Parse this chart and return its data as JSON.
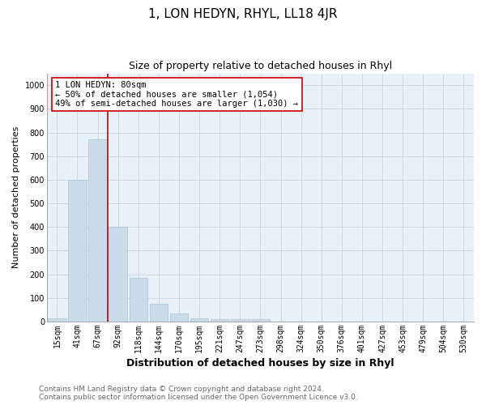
{
  "title": "1, LON HEDYN, RHYL, LL18 4JR",
  "subtitle": "Size of property relative to detached houses in Rhyl",
  "xlabel": "Distribution of detached houses by size in Rhyl",
  "ylabel": "Number of detached properties",
  "categories": [
    "15sqm",
    "41sqm",
    "67sqm",
    "92sqm",
    "118sqm",
    "144sqm",
    "170sqm",
    "195sqm",
    "221sqm",
    "247sqm",
    "273sqm",
    "298sqm",
    "324sqm",
    "350sqm",
    "376sqm",
    "401sqm",
    "427sqm",
    "453sqm",
    "479sqm",
    "504sqm",
    "530sqm"
  ],
  "values": [
    15,
    600,
    770,
    400,
    185,
    75,
    35,
    15,
    10,
    10,
    10,
    0,
    0,
    0,
    0,
    0,
    0,
    0,
    0,
    0,
    0
  ],
  "bar_color": "#c9dcea",
  "bar_edge_color": "#aac4d8",
  "vline_x": 2.5,
  "vline_color": "#cc0000",
  "annotation_text": "1 LON HEDYN: 80sqm\n← 50% of detached houses are smaller (1,054)\n49% of semi-detached houses are larger (1,030) →",
  "annotation_box_color": "#ffffff",
  "annotation_box_edge_color": "#cc0000",
  "ylim": [
    0,
    1050
  ],
  "yticks": [
    0,
    100,
    200,
    300,
    400,
    500,
    600,
    700,
    800,
    900,
    1000
  ],
  "grid_color": "#c8d4e0",
  "background_color": "#e8f0f8",
  "footer": "Contains HM Land Registry data © Crown copyright and database right 2024.\nContains public sector information licensed under the Open Government Licence v3.0.",
  "title_fontsize": 11,
  "subtitle_fontsize": 9,
  "xlabel_fontsize": 9,
  "ylabel_fontsize": 8,
  "tick_fontsize": 7,
  "annotation_fontsize": 7.5,
  "footer_fontsize": 6.5
}
